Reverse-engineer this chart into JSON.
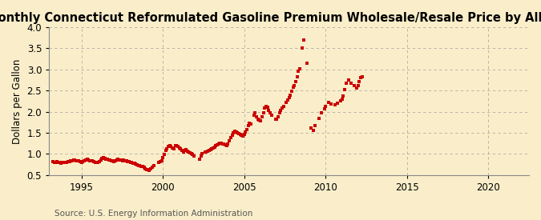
{
  "title": "Monthly Connecticut Reformulated Gasoline Premium Wholesale/Resale Price by All Sellers",
  "ylabel": "Dollars per Gallon",
  "source": "Source: U.S. Energy Information Administration",
  "background_color": "#faeeca",
  "line_color": "#cc0000",
  "marker": "s",
  "marker_size": 2.5,
  "xlim": [
    1993.0,
    2022.5
  ],
  "ylim": [
    0.5,
    4.0
  ],
  "yticks": [
    0.5,
    1.0,
    1.5,
    2.0,
    2.5,
    3.0,
    3.5,
    4.0
  ],
  "xticks": [
    1995,
    2000,
    2005,
    2010,
    2015,
    2020
  ],
  "grid_color": "#999999",
  "title_fontsize": 10.5,
  "label_fontsize": 8.5,
  "tick_fontsize": 8.5,
  "source_fontsize": 7.5,
  "data": [
    [
      1993.25,
      0.82
    ],
    [
      1993.33,
      0.8
    ],
    [
      1993.42,
      0.79
    ],
    [
      1993.5,
      0.81
    ],
    [
      1993.58,
      0.8
    ],
    [
      1993.67,
      0.79
    ],
    [
      1993.75,
      0.78
    ],
    [
      1993.83,
      0.79
    ],
    [
      1993.92,
      0.8
    ],
    [
      1994.0,
      0.79
    ],
    [
      1994.08,
      0.8
    ],
    [
      1994.17,
      0.81
    ],
    [
      1994.25,
      0.82
    ],
    [
      1994.33,
      0.83
    ],
    [
      1994.42,
      0.84
    ],
    [
      1994.5,
      0.86
    ],
    [
      1994.58,
      0.85
    ],
    [
      1994.67,
      0.84
    ],
    [
      1994.75,
      0.83
    ],
    [
      1994.83,
      0.83
    ],
    [
      1994.92,
      0.82
    ],
    [
      1995.0,
      0.8
    ],
    [
      1995.08,
      0.81
    ],
    [
      1995.17,
      0.83
    ],
    [
      1995.25,
      0.86
    ],
    [
      1995.33,
      0.87
    ],
    [
      1995.42,
      0.85
    ],
    [
      1995.5,
      0.84
    ],
    [
      1995.58,
      0.84
    ],
    [
      1995.67,
      0.83
    ],
    [
      1995.75,
      0.81
    ],
    [
      1995.83,
      0.8
    ],
    [
      1995.92,
      0.79
    ],
    [
      1996.0,
      0.8
    ],
    [
      1996.08,
      0.82
    ],
    [
      1996.17,
      0.85
    ],
    [
      1996.25,
      0.9
    ],
    [
      1996.33,
      0.92
    ],
    [
      1996.42,
      0.9
    ],
    [
      1996.5,
      0.88
    ],
    [
      1996.58,
      0.88
    ],
    [
      1996.67,
      0.86
    ],
    [
      1996.75,
      0.85
    ],
    [
      1996.83,
      0.84
    ],
    [
      1996.92,
      0.83
    ],
    [
      1997.0,
      0.82
    ],
    [
      1997.08,
      0.83
    ],
    [
      1997.17,
      0.85
    ],
    [
      1997.25,
      0.87
    ],
    [
      1997.33,
      0.86
    ],
    [
      1997.42,
      0.85
    ],
    [
      1997.5,
      0.84
    ],
    [
      1997.58,
      0.85
    ],
    [
      1997.67,
      0.84
    ],
    [
      1997.75,
      0.83
    ],
    [
      1997.83,
      0.82
    ],
    [
      1997.92,
      0.81
    ],
    [
      1998.0,
      0.8
    ],
    [
      1998.08,
      0.79
    ],
    [
      1998.17,
      0.78
    ],
    [
      1998.25,
      0.77
    ],
    [
      1998.33,
      0.76
    ],
    [
      1998.42,
      0.74
    ],
    [
      1998.5,
      0.73
    ],
    [
      1998.58,
      0.72
    ],
    [
      1998.67,
      0.71
    ],
    [
      1998.75,
      0.7
    ],
    [
      1998.83,
      0.68
    ],
    [
      1998.92,
      0.65
    ],
    [
      1999.0,
      0.63
    ],
    [
      1999.08,
      0.62
    ],
    [
      1999.17,
      0.61
    ],
    [
      1999.25,
      0.64
    ],
    [
      1999.33,
      0.68
    ],
    [
      1999.42,
      0.72
    ],
    [
      1999.75,
      0.8
    ],
    [
      1999.83,
      0.82
    ],
    [
      1999.92,
      0.84
    ],
    [
      2000.0,
      0.92
    ],
    [
      2000.08,
      0.98
    ],
    [
      2000.17,
      1.08
    ],
    [
      2000.25,
      1.12
    ],
    [
      2000.33,
      1.18
    ],
    [
      2000.42,
      1.2
    ],
    [
      2000.5,
      1.17
    ],
    [
      2000.58,
      1.14
    ],
    [
      2000.67,
      1.12
    ],
    [
      2000.75,
      1.19
    ],
    [
      2000.83,
      1.2
    ],
    [
      2000.92,
      1.17
    ],
    [
      2001.0,
      1.14
    ],
    [
      2001.08,
      1.12
    ],
    [
      2001.17,
      1.08
    ],
    [
      2001.25,
      1.05
    ],
    [
      2001.33,
      1.08
    ],
    [
      2001.42,
      1.1
    ],
    [
      2001.5,
      1.06
    ],
    [
      2001.58,
      1.04
    ],
    [
      2001.67,
      1.02
    ],
    [
      2001.75,
      1.0
    ],
    [
      2001.83,
      0.98
    ],
    [
      2001.92,
      0.94
    ],
    [
      2002.25,
      0.88
    ],
    [
      2002.33,
      0.95
    ],
    [
      2002.42,
      1.0
    ],
    [
      2002.58,
      1.04
    ],
    [
      2002.67,
      1.05
    ],
    [
      2002.75,
      1.06
    ],
    [
      2002.83,
      1.08
    ],
    [
      2002.92,
      1.1
    ],
    [
      2003.0,
      1.12
    ],
    [
      2003.08,
      1.14
    ],
    [
      2003.17,
      1.16
    ],
    [
      2003.25,
      1.2
    ],
    [
      2003.33,
      1.22
    ],
    [
      2003.42,
      1.23
    ],
    [
      2003.5,
      1.25
    ],
    [
      2003.58,
      1.26
    ],
    [
      2003.67,
      1.24
    ],
    [
      2003.75,
      1.23
    ],
    [
      2003.83,
      1.22
    ],
    [
      2003.92,
      1.2
    ],
    [
      2004.0,
      1.24
    ],
    [
      2004.08,
      1.3
    ],
    [
      2004.17,
      1.38
    ],
    [
      2004.25,
      1.44
    ],
    [
      2004.33,
      1.5
    ],
    [
      2004.42,
      1.54
    ],
    [
      2004.5,
      1.52
    ],
    [
      2004.58,
      1.5
    ],
    [
      2004.67,
      1.48
    ],
    [
      2004.75,
      1.46
    ],
    [
      2004.83,
      1.44
    ],
    [
      2004.92,
      1.43
    ],
    [
      2005.0,
      1.46
    ],
    [
      2005.08,
      1.52
    ],
    [
      2005.17,
      1.57
    ],
    [
      2005.25,
      1.67
    ],
    [
      2005.33,
      1.72
    ],
    [
      2005.42,
      1.7
    ],
    [
      2005.58,
      1.92
    ],
    [
      2005.67,
      1.97
    ],
    [
      2005.75,
      1.88
    ],
    [
      2005.83,
      1.82
    ],
    [
      2005.92,
      1.8
    ],
    [
      2006.0,
      1.78
    ],
    [
      2006.08,
      1.88
    ],
    [
      2006.17,
      1.98
    ],
    [
      2006.25,
      2.08
    ],
    [
      2006.33,
      2.12
    ],
    [
      2006.42,
      2.1
    ],
    [
      2006.5,
      2.02
    ],
    [
      2006.58,
      1.97
    ],
    [
      2006.67,
      1.92
    ],
    [
      2006.92,
      1.83
    ],
    [
      2007.0,
      1.82
    ],
    [
      2007.08,
      1.87
    ],
    [
      2007.17,
      1.97
    ],
    [
      2007.25,
      2.02
    ],
    [
      2007.33,
      2.08
    ],
    [
      2007.42,
      2.12
    ],
    [
      2007.58,
      2.22
    ],
    [
      2007.67,
      2.28
    ],
    [
      2007.75,
      2.33
    ],
    [
      2007.83,
      2.38
    ],
    [
      2007.92,
      2.48
    ],
    [
      2008.0,
      2.58
    ],
    [
      2008.08,
      2.62
    ],
    [
      2008.17,
      2.72
    ],
    [
      2008.25,
      2.82
    ],
    [
      2008.33,
      2.95
    ],
    [
      2008.42,
      3.02
    ],
    [
      2008.58,
      3.5
    ],
    [
      2008.67,
      3.7
    ],
    [
      2008.83,
      3.15
    ],
    [
      2009.08,
      1.62
    ],
    [
      2009.25,
      1.56
    ],
    [
      2009.33,
      1.66
    ],
    [
      2009.58,
      1.84
    ],
    [
      2009.75,
      1.97
    ],
    [
      2009.92,
      2.06
    ],
    [
      2010.0,
      2.12
    ],
    [
      2010.17,
      2.21
    ],
    [
      2010.33,
      2.19
    ],
    [
      2010.58,
      2.17
    ],
    [
      2010.75,
      2.2
    ],
    [
      2010.92,
      2.25
    ],
    [
      2011.0,
      2.3
    ],
    [
      2011.08,
      2.37
    ],
    [
      2011.17,
      2.52
    ],
    [
      2011.25,
      2.68
    ],
    [
      2011.42,
      2.74
    ],
    [
      2011.58,
      2.67
    ],
    [
      2011.75,
      2.62
    ],
    [
      2011.92,
      2.56
    ],
    [
      2012.0,
      2.62
    ],
    [
      2012.08,
      2.72
    ],
    [
      2012.17,
      2.8
    ],
    [
      2012.25,
      2.83
    ]
  ]
}
